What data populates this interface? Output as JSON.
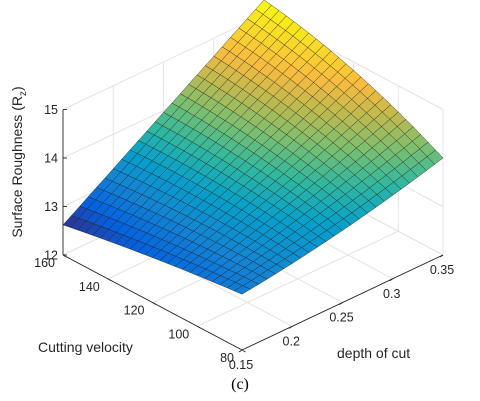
{
  "chart_data": {
    "type": "surface",
    "xlabel": "depth of cut",
    "ylabel": "Cutting velocity",
    "zlabel": "Surface Roughness (R",
    "zlabel_sub": "z",
    "zlabel_close": ")",
    "caption": "(c)",
    "xlim": [
      0.15,
      0.35
    ],
    "ylim": [
      80,
      160
    ],
    "zlim": [
      12,
      15
    ],
    "x_ticks": [
      "0.15",
      "0.2",
      "0.25",
      "0.3",
      "0.35"
    ],
    "y_ticks": [
      "80",
      "100",
      "120",
      "140",
      "160"
    ],
    "z_ticks": [
      "12",
      "13",
      "14",
      "15"
    ],
    "colormap": "parula",
    "grid": true,
    "corners": [
      {
        "x": 0.15,
        "y": 80,
        "z": 13.15
      },
      {
        "x": 0.15,
        "y": 160,
        "z": 12.62
      },
      {
        "x": 0.35,
        "y": 80,
        "z": 14.0
      },
      {
        "x": 0.35,
        "y": 160,
        "z": 15.3
      }
    ]
  }
}
